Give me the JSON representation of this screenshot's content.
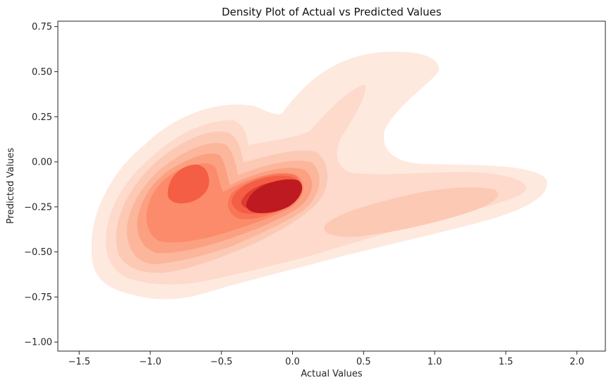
{
  "chart_data": {
    "type": "density",
    "title": "Density Plot of Actual vs Predicted Values",
    "xlabel": "Actual Values",
    "ylabel": "Predicted Values",
    "xlim": [
      -1.65,
      2.2
    ],
    "ylim": [
      -1.05,
      0.78
    ],
    "xticks": [
      -1.5,
      -1.0,
      -0.5,
      0.0,
      0.5,
      1.0,
      1.5,
      2.0
    ],
    "xtick_labels": [
      "−1.5",
      "−1.0",
      "−0.5",
      "0.0",
      "0.5",
      "1.0",
      "1.5",
      "2.0"
    ],
    "yticks": [
      -1.0,
      -0.75,
      -0.5,
      -0.25,
      0.0,
      0.25,
      0.5,
      0.75
    ],
    "ytick_labels": [
      "−1.00",
      "−0.75",
      "−0.50",
      "−0.25",
      "0.00",
      "0.25",
      "0.50",
      "0.75"
    ],
    "grid": false,
    "legend": "none",
    "colormap": "Reds",
    "levels": 10,
    "level_colors": [
      "#fee9df",
      "#fddacb",
      "#fcc9b4",
      "#fcb69c",
      "#fca082",
      "#fc8b6b",
      "#f97557",
      "#f35e45",
      "#e03b30",
      "#be1a22"
    ],
    "density_modes": [
      {
        "x": -0.15,
        "y": -0.22,
        "weight": 1.0
      },
      {
        "x": -0.7,
        "y": -0.17,
        "weight": 0.58
      },
      {
        "x": -0.85,
        "y": -0.4,
        "weight": 0.38
      },
      {
        "x": 0.55,
        "y": 0.25,
        "weight": 0.12
      },
      {
        "x": 0.9,
        "y": -0.3,
        "weight": 0.16
      },
      {
        "x": 1.5,
        "y": -0.15,
        "weight": 0.07
      }
    ]
  }
}
